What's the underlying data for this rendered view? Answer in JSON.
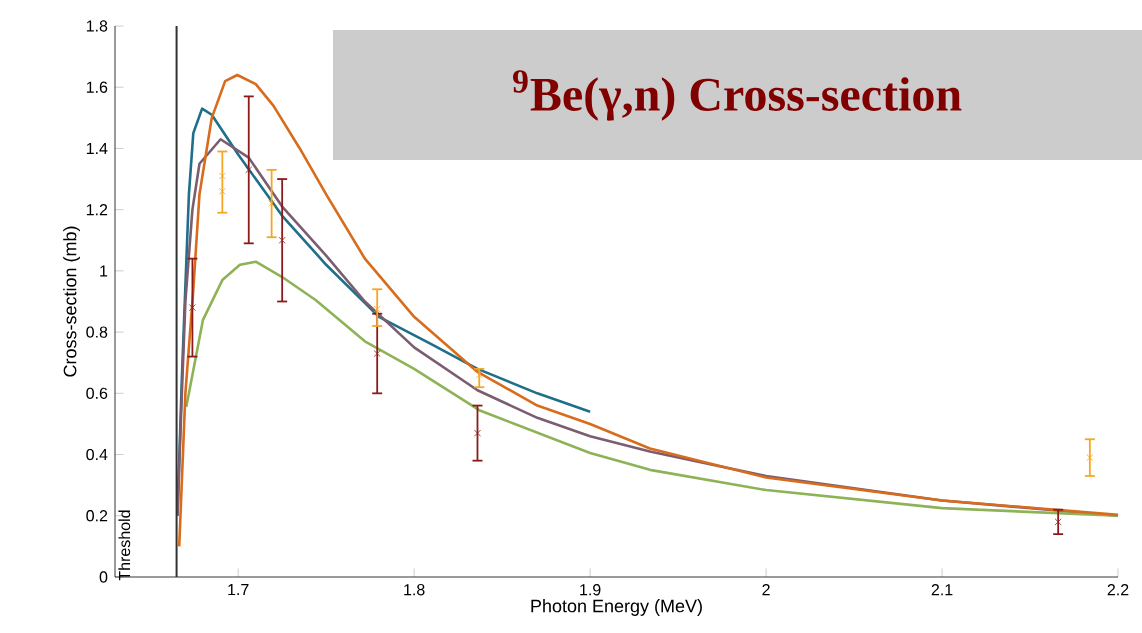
{
  "chart_data": {
    "type": "line",
    "title": "$^{9}$Be(γ,n) Cross-section",
    "xlabel": "Photon Energy (MeV)",
    "ylabel": "Cross-section (mb)",
    "xlim": [
      1.63,
      2.2
    ],
    "ylim": [
      0,
      1.8
    ],
    "xticks": [
      1.7,
      1.8,
      1.9,
      2,
      2.1,
      2.2
    ],
    "yticks": [
      0,
      0.2,
      0.4,
      0.6,
      0.8,
      1,
      1.2,
      1.4,
      1.6,
      1.8
    ],
    "line_style": "solid",
    "marker": "none",
    "ref_lines": [
      {
        "axis": "x",
        "value": 1.665,
        "label": "Threshold",
        "color": "#323232"
      }
    ],
    "series": [
      {
        "color": "#1f6f8b",
        "x": [
          1.6655,
          1.668,
          1.67,
          1.672,
          1.6745,
          1.6795,
          1.685,
          1.7,
          1.725,
          1.75,
          1.78,
          1.81,
          1.836,
          1.87,
          1.9
        ],
        "values": [
          0.2,
          0.65,
          0.95,
          1.25,
          1.45,
          1.53,
          1.51,
          1.38,
          1.18,
          1.02,
          0.85,
          0.76,
          0.68,
          0.6,
          0.54
        ]
      },
      {
        "color": "#7b5d70",
        "x": [
          1.6655,
          1.668,
          1.67,
          1.674,
          1.678,
          1.69,
          1.706,
          1.725,
          1.75,
          1.772,
          1.8,
          1.836,
          1.87,
          1.9,
          1.934,
          2.0,
          2.1,
          2.2
        ],
        "values": [
          0.2,
          0.6,
          0.9,
          1.2,
          1.35,
          1.43,
          1.37,
          1.21,
          1.05,
          0.9,
          0.75,
          0.61,
          0.52,
          0.46,
          0.41,
          0.33,
          0.25,
          0.2
        ]
      },
      {
        "color": "#8db356",
        "x": [
          1.6705,
          1.68,
          1.691,
          1.701,
          1.71,
          1.725,
          1.744,
          1.772,
          1.8,
          1.837,
          1.9,
          1.934,
          2.0,
          2.1,
          2.2
        ],
        "values": [
          0.555,
          0.84,
          0.97,
          1.02,
          1.03,
          0.98,
          0.905,
          0.77,
          0.68,
          0.545,
          0.405,
          0.35,
          0.284,
          0.225,
          0.2
        ]
      },
      {
        "color": "#d86c1c",
        "x": [
          1.6665,
          1.67,
          1.6744,
          1.678,
          1.685,
          1.6926,
          1.6995,
          1.71,
          1.72,
          1.735,
          1.75,
          1.772,
          1.8,
          1.836,
          1.87,
          1.9,
          1.934,
          2.0,
          2.1,
          2.2
        ],
        "values": [
          0.1,
          0.6,
          0.93,
          1.25,
          1.5,
          1.62,
          1.64,
          1.61,
          1.54,
          1.4,
          1.25,
          1.04,
          0.85,
          0.67,
          0.56,
          0.5,
          0.42,
          0.325,
          0.25,
          0.203
        ]
      },
      {
        "type": "scatter",
        "color": "#8b1a1a",
        "marker": "cross",
        "x": [
          1.674,
          1.706,
          1.725,
          1.779,
          1.836,
          2.166
        ],
        "values": [
          0.88,
          1.33,
          1.1,
          0.73,
          0.47,
          0.18
        ],
        "errors": [
          [
            0.72,
            1.04
          ],
          [
            1.09,
            1.57
          ],
          [
            0.9,
            1.3
          ],
          [
            0.6,
            0.86
          ],
          [
            0.38,
            0.56
          ],
          [
            0.14,
            0.22
          ]
        ]
      },
      {
        "type": "scatter",
        "color": "#f5a623",
        "marker": "cross",
        "x": [
          1.691,
          1.691,
          1.719,
          1.779,
          1.837,
          2.184
        ],
        "values": [
          1.31,
          1.26,
          1.22,
          0.875,
          0.66,
          0.39
        ],
        "errors": [
          [
            1.19,
            1.39
          ],
          null,
          [
            1.11,
            1.33
          ],
          [
            0.82,
            0.94
          ],
          [
            0.62,
            0.68
          ],
          [
            0.33,
            0.45
          ]
        ]
      }
    ]
  }
}
